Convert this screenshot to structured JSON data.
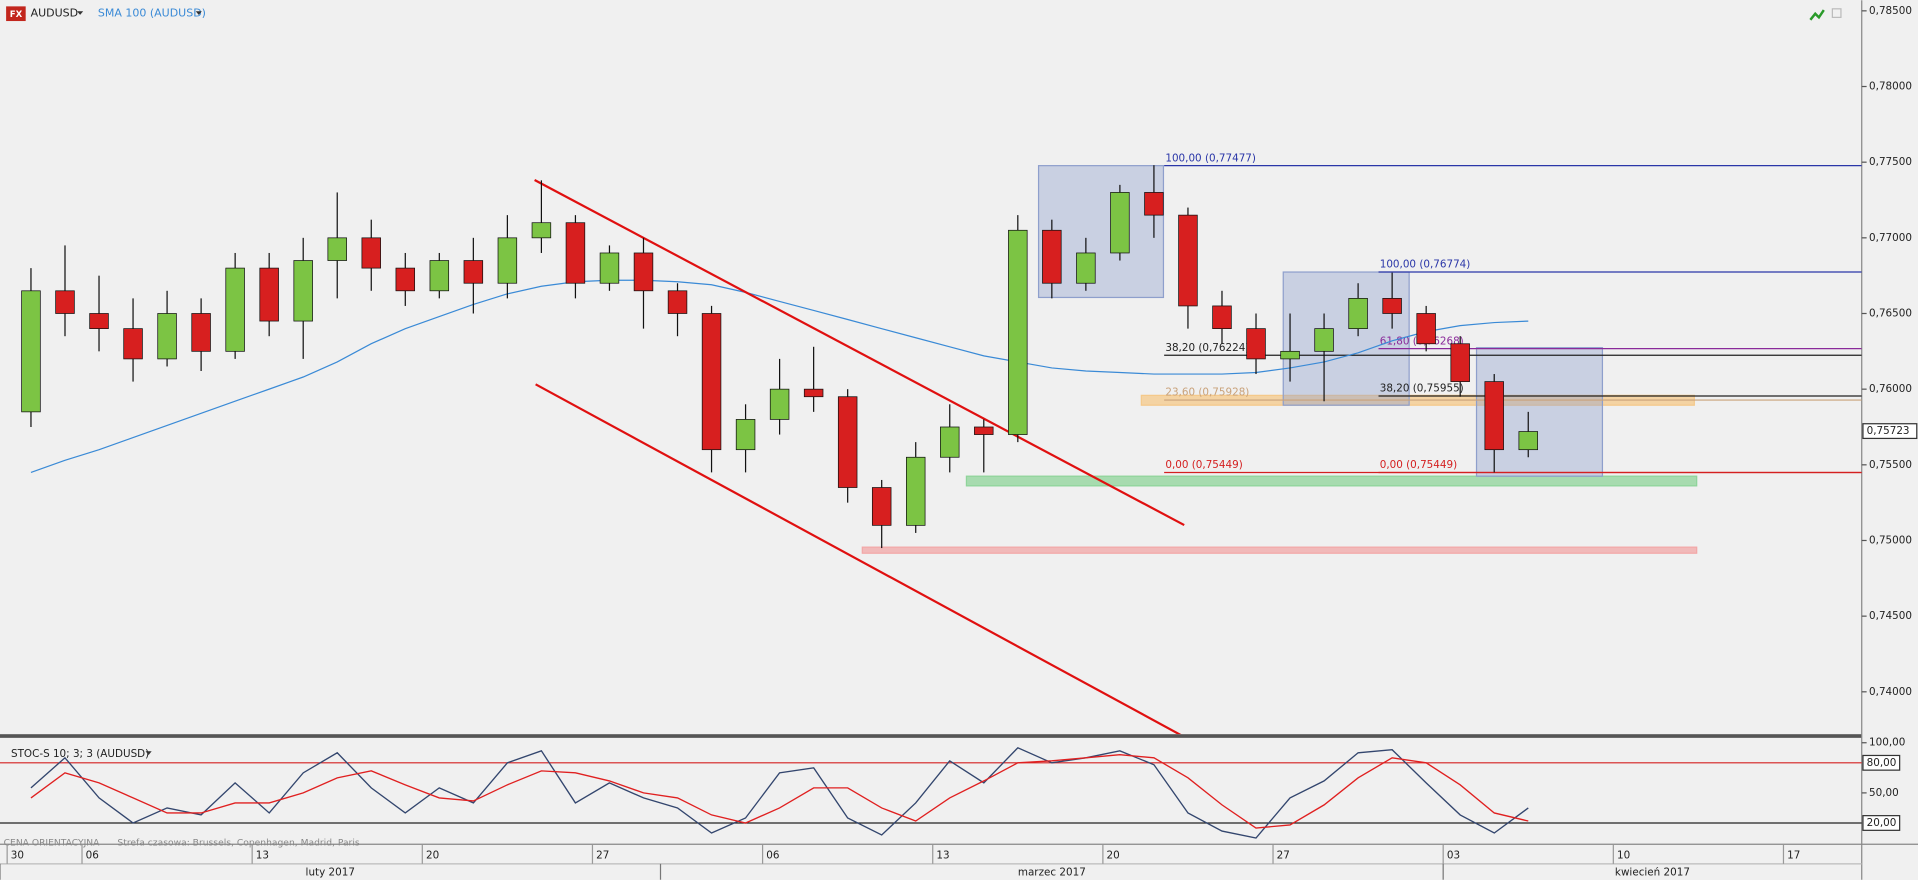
{
  "chart_data": [
    {
      "type": "candlestick",
      "title": "AUDUSD",
      "open": [
        0.7585,
        0.7665,
        0.765,
        0.764,
        0.762,
        0.765,
        0.7625,
        0.768,
        0.7645,
        0.7685,
        0.77,
        0.768,
        0.7665,
        0.7685,
        0.767,
        0.77,
        0.771,
        0.767,
        0.769,
        0.7665,
        0.765,
        0.756,
        0.758,
        0.76,
        0.7595,
        0.7535,
        0.751,
        0.7555,
        0.7575,
        0.757,
        0.7705,
        0.767,
        0.769,
        0.773,
        0.7715,
        0.7655,
        0.764,
        0.762,
        0.7625,
        0.764,
        0.766,
        0.765,
        0.763,
        0.7605,
        0.756
      ],
      "high": [
        0.768,
        0.7695,
        0.7675,
        0.766,
        0.7665,
        0.766,
        0.769,
        0.769,
        0.77,
        0.773,
        0.7712,
        0.769,
        0.769,
        0.77,
        0.7715,
        0.7738,
        0.7715,
        0.7695,
        0.77,
        0.767,
        0.7655,
        0.759,
        0.762,
        0.7628,
        0.76,
        0.754,
        0.7565,
        0.759,
        0.758,
        0.7715,
        0.7712,
        0.77,
        0.7735,
        0.7748,
        0.772,
        0.7665,
        0.765,
        0.765,
        0.765,
        0.767,
        0.7677,
        0.7655,
        0.7635,
        0.761,
        0.7585
      ],
      "low": [
        0.7575,
        0.7635,
        0.7625,
        0.7605,
        0.7615,
        0.7612,
        0.762,
        0.7635,
        0.762,
        0.766,
        0.7665,
        0.7655,
        0.766,
        0.765,
        0.766,
        0.769,
        0.766,
        0.7665,
        0.764,
        0.7635,
        0.7545,
        0.7545,
        0.757,
        0.7585,
        0.7525,
        0.7495,
        0.7505,
        0.7545,
        0.7545,
        0.7565,
        0.766,
        0.7665,
        0.7685,
        0.77,
        0.764,
        0.763,
        0.761,
        0.7605,
        0.7592,
        0.7635,
        0.764,
        0.7625,
        0.7595,
        0.7545,
        0.7555
      ],
      "close": [
        0.7665,
        0.765,
        0.764,
        0.762,
        0.765,
        0.7625,
        0.768,
        0.7645,
        0.7685,
        0.77,
        0.768,
        0.7665,
        0.7685,
        0.767,
        0.77,
        0.771,
        0.767,
        0.769,
        0.7665,
        0.765,
        0.756,
        0.758,
        0.76,
        0.7595,
        0.7535,
        0.751,
        0.7555,
        0.7575,
        0.757,
        0.7705,
        0.767,
        0.769,
        0.773,
        0.7715,
        0.7655,
        0.764,
        0.762,
        0.7625,
        0.764,
        0.766,
        0.765,
        0.763,
        0.7605,
        0.756,
        0.7572
      ],
      "up_color": "#7cc444",
      "down_color": "#d71f1f",
      "overlay": {
        "name": "SMA 100 (AUDUSD)",
        "color": "#3a8ad6",
        "values": [
          0.7545,
          0.7553,
          0.756,
          0.7568,
          0.7576,
          0.7584,
          0.7592,
          0.76,
          0.7608,
          0.7618,
          0.763,
          0.764,
          0.7648,
          0.7656,
          0.7663,
          0.7668,
          0.7671,
          0.7672,
          0.7672,
          0.7671,
          0.7669,
          0.7664,
          0.7658,
          0.7652,
          0.7646,
          0.764,
          0.7634,
          0.7628,
          0.7622,
          0.7618,
          0.7614,
          0.7612,
          0.7611,
          0.761,
          0.761,
          0.761,
          0.7611,
          0.7614,
          0.7618,
          0.7624,
          0.7632,
          0.7638,
          0.7642,
          0.7644,
          0.7645
        ]
      },
      "xlim": [
        -0.41,
        54.3
      ],
      "ylim": [
        0.7372,
        0.7857
      ],
      "yticks": [
        {
          "value": 0.74,
          "label": "0,74000"
        },
        {
          "value": 0.745,
          "label": "0,74500"
        },
        {
          "value": 0.75,
          "label": "0,75000"
        },
        {
          "value": 0.755,
          "label": "0,75500"
        },
        {
          "value": 0.76,
          "label": "0,76000"
        },
        {
          "value": 0.765,
          "label": "0,76500"
        },
        {
          "value": 0.77,
          "label": "0,77000"
        },
        {
          "value": 0.775,
          "label": "0,77500"
        },
        {
          "value": 0.78,
          "label": "0,78000"
        },
        {
          "value": 0.785,
          "label": "0,78500"
        }
      ],
      "last_price": {
        "value": 0.75723,
        "label": "0,75723"
      },
      "fib_levels": [
        {
          "label": "100,00 (0,77477)",
          "value": 0.77477,
          "from": 33.8,
          "color": "#2a36a8"
        },
        {
          "label": "38,20 (0,76224)",
          "value": 0.76224,
          "from": 33.8,
          "color": "#222222"
        },
        {
          "label": "23,60 (0,75928)",
          "value": 0.75928,
          "from": 33.8,
          "color": "#c9a27a"
        },
        {
          "label": "0,00 (0,75449)",
          "value": 0.75449,
          "from": 33.8,
          "color": "#d42020"
        },
        {
          "label": "100,00 (0,76774)",
          "value": 0.76774,
          "from": 40.1,
          "color": "#2a36a8"
        },
        {
          "label": "61,80 (0,76268)",
          "value": 0.76268,
          "from": 40.1,
          "color": "#8a2a9a"
        },
        {
          "label": "38,20 (0,75955)",
          "value": 0.75955,
          "from": 40.1,
          "color": "#222222"
        },
        {
          "label": "0,00 (0,75449)",
          "value": 0.75449,
          "from": 40.1,
          "color": "#d42020"
        }
      ],
      "boxes": [
        {
          "x": [
            30.11,
            33.78
          ],
          "y": [
            0.77477,
            0.76606
          ],
          "color": "#8e9fcc"
        },
        {
          "x": [
            37.3,
            41.0
          ],
          "y": [
            0.76774,
            0.75894
          ],
          "color": "#8e9fcc"
        },
        {
          "x": [
            42.98,
            46.68
          ],
          "y": [
            0.76274,
            0.75425
          ],
          "color": "#8e9fcc"
        }
      ],
      "zones": [
        {
          "x": [
            27.99,
            49.45
          ],
          "y": [
            0.75425,
            0.75361
          ],
          "color": "#8fd49a"
        },
        {
          "x": [
            24.93,
            49.45
          ],
          "y": [
            0.74956,
            0.74916
          ],
          "color": "#f2a7a7"
        },
        {
          "x": [
            33.13,
            49.38
          ],
          "y": [
            0.75959,
            0.75894
          ],
          "color": "#f5c98a"
        }
      ],
      "trendlines": [
        {
          "x": [
            15.3,
            34.39
          ],
          "y": [
            0.77382,
            0.75102
          ],
          "color": "#e01010"
        },
        {
          "x": [
            15.33,
            34.39
          ],
          "y": [
            0.76032,
            0.73702
          ],
          "color": "#e01010"
        }
      ]
    },
    {
      "type": "line",
      "title": "STOC-S 10; 3; 3 (AUDUSD)",
      "series": [
        {
          "color": "#33466e",
          "values": [
            55,
            85,
            45,
            20,
            35,
            28,
            60,
            30,
            70,
            90,
            55,
            30,
            55,
            40,
            80,
            92,
            40,
            60,
            45,
            35,
            10,
            25,
            70,
            75,
            25,
            8,
            40,
            82,
            60,
            95,
            80,
            85,
            92,
            78,
            30,
            12,
            5,
            45,
            62,
            90,
            93,
            60,
            28,
            10,
            35
          ]
        },
        {
          "color": "#e02020",
          "values": [
            45,
            70,
            60,
            45,
            30,
            30,
            40,
            40,
            50,
            65,
            72,
            58,
            45,
            42,
            58,
            72,
            70,
            62,
            50,
            45,
            28,
            20,
            35,
            55,
            55,
            35,
            22,
            45,
            62,
            80,
            82,
            85,
            88,
            85,
            65,
            38,
            15,
            18,
            38,
            65,
            85,
            80,
            58,
            30,
            22
          ]
        }
      ],
      "xlim": [
        -0.41,
        54.3
      ],
      "ylim": [
        0,
        100
      ],
      "yticks": [
        {
          "value": 100,
          "label": "100,00"
        },
        {
          "value": 50,
          "label": "50,00"
        }
      ],
      "levels": [
        {
          "value": 80,
          "label": "80,00",
          "color": "#d42020"
        },
        {
          "value": 20,
          "label": "20,00",
          "color": "#222222"
        }
      ],
      "xticks": [
        {
          "value": -0.2,
          "label": "30"
        },
        {
          "value": 2,
          "label": "06"
        },
        {
          "value": 7,
          "label": "13"
        },
        {
          "value": 12,
          "label": "20"
        },
        {
          "value": 17,
          "label": "27"
        },
        {
          "value": 22,
          "label": "06"
        },
        {
          "value": 27,
          "label": "13"
        },
        {
          "value": 32,
          "label": "20"
        },
        {
          "value": 37,
          "label": "27"
        },
        {
          "value": 42,
          "label": "03"
        },
        {
          "value": 47,
          "label": "10"
        },
        {
          "value": 52,
          "label": "17"
        }
      ],
      "periods": [
        {
          "label": "luty 2017",
          "from": -0.41,
          "to": 19
        },
        {
          "label": "marzec 2017",
          "from": 19,
          "to": 42
        },
        {
          "label": "kwiecień 2017",
          "from": 42,
          "to": 54.3
        }
      ]
    }
  ],
  "footer": {
    "note": "CENA ORIENTACYJNA",
    "timezone": "Strefa czasowa: Brussels, Copenhagen, Madrid, Paris"
  }
}
